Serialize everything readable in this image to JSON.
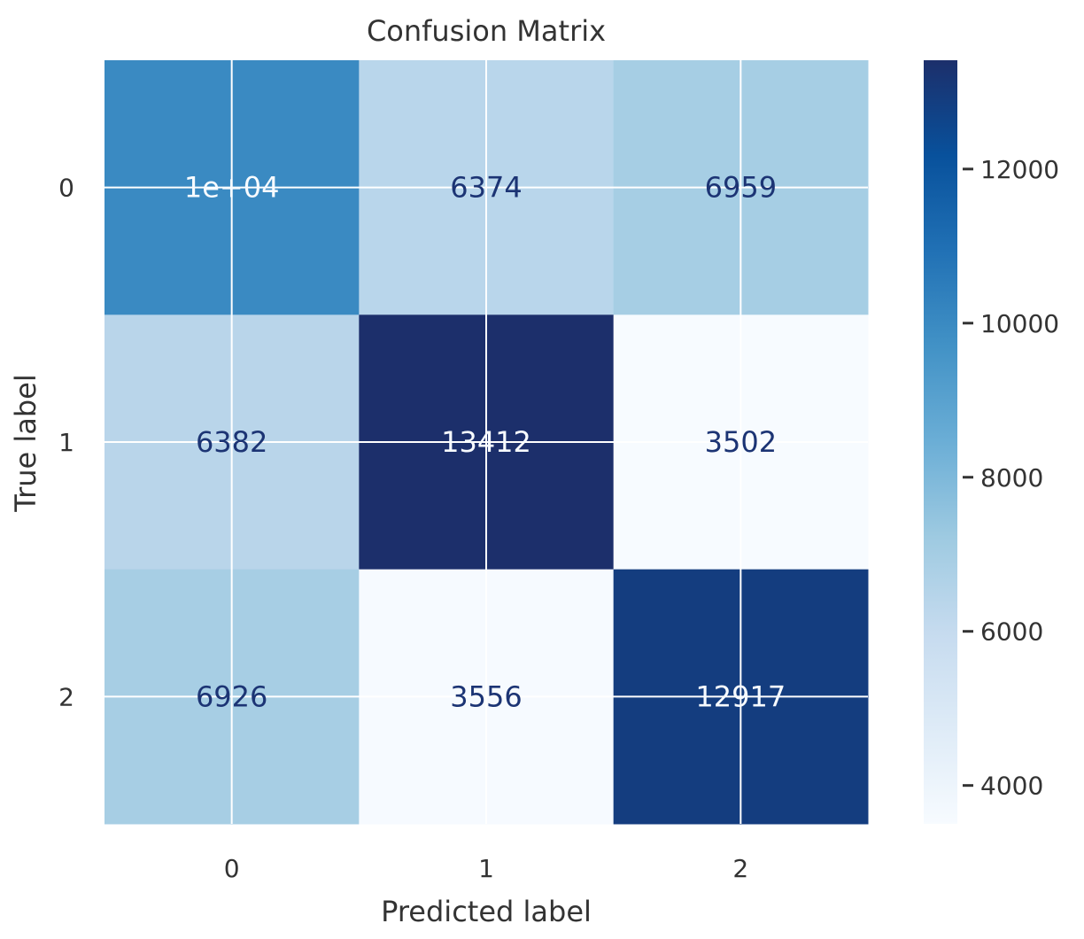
{
  "chart_data": {
    "type": "heatmap",
    "title": "Confusion Matrix",
    "xlabel": "Predicted label",
    "ylabel": "True label",
    "x_categories": [
      "0",
      "1",
      "2"
    ],
    "y_categories": [
      "0",
      "1",
      "2"
    ],
    "matrix": [
      [
        10000,
        6374,
        6959
      ],
      [
        6382,
        13412,
        3502
      ],
      [
        6926,
        3556,
        12917
      ]
    ],
    "cell_labels": [
      [
        "1e+04",
        "6374",
        "6959"
      ],
      [
        "6382",
        "13412",
        "3502"
      ],
      [
        "6926",
        "3556",
        "12917"
      ]
    ],
    "colormap": "Blues",
    "color_range": [
      3502,
      13412
    ],
    "colorbar_ticks": [
      4000,
      6000,
      8000,
      10000,
      12000
    ],
    "colorbar_tick_labels": [
      "4000",
      "6000",
      "8000",
      "10000",
      "12000"
    ],
    "grid": true,
    "colors": {
      "text_dark": "#1c3474",
      "text_light": "#f7fbff",
      "grid": "#ffffff",
      "axis_text": "#333333"
    }
  }
}
